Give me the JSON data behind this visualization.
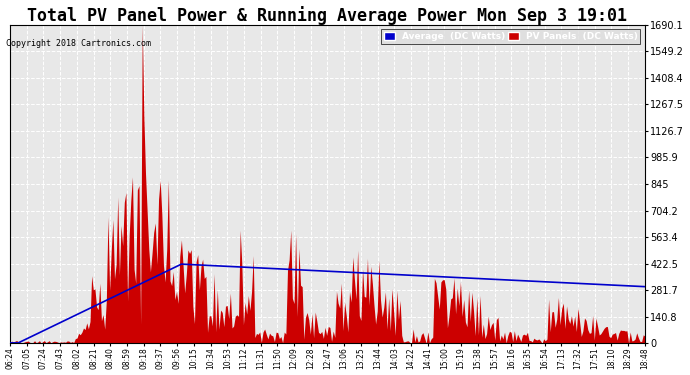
{
  "title": "Total PV Panel Power & Running Average Power Mon Sep 3 19:01",
  "copyright": "Copyright 2018 Cartronics.com",
  "legend_avg": "Average  (DC Watts)",
  "legend_pv": "PV Panels  (DC Watts)",
  "yticks": [
    0.0,
    140.8,
    281.7,
    422.5,
    563.4,
    704.2,
    845.0,
    985.9,
    1126.7,
    1267.5,
    1408.4,
    1549.2,
    1690.1
  ],
  "ymax": 1690.1,
  "ymin": 0.0,
  "bg_color": "#ffffff",
  "plot_bg_color": "#e8e8e8",
  "grid_color": "#ffffff",
  "bar_color": "#cc0000",
  "line_color": "#0000cc",
  "title_fontsize": 12,
  "legend_avg_bg": "#0000cc",
  "legend_pv_bg": "#cc0000",
  "xtick_labels": [
    "06:24",
    "07:05",
    "07:24",
    "07:43",
    "08:02",
    "08:21",
    "08:40",
    "08:59",
    "09:18",
    "09:37",
    "09:56",
    "10:15",
    "10:34",
    "10:53",
    "11:12",
    "11:31",
    "11:50",
    "12:09",
    "12:28",
    "12:47",
    "13:06",
    "13:25",
    "13:44",
    "14:03",
    "14:22",
    "14:41",
    "15:00",
    "15:19",
    "15:38",
    "15:57",
    "16:16",
    "16:35",
    "16:54",
    "17:13",
    "17:32",
    "17:51",
    "18:10",
    "18:29",
    "18:48"
  ]
}
